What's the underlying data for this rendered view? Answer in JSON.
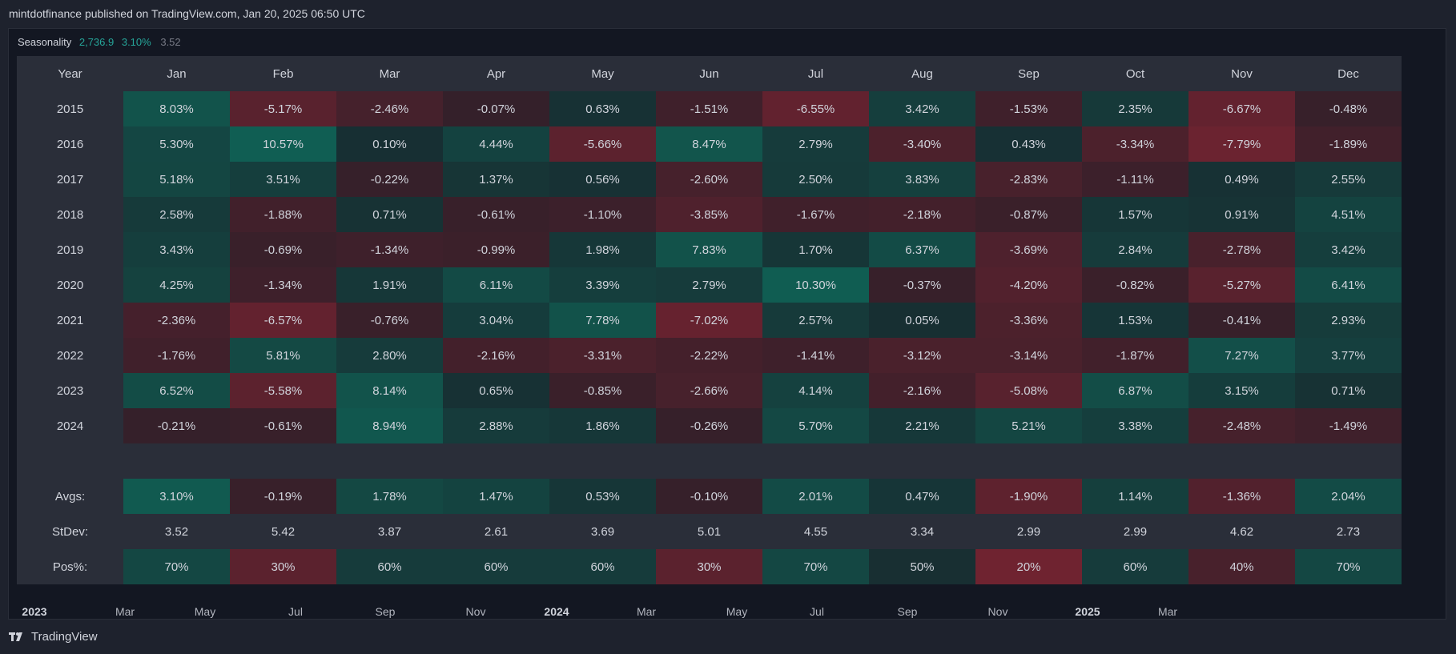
{
  "publication": "mintdotfinance published on TradingView.com, Jan 20, 2025 06:50 UTC",
  "legend": {
    "title": "Seasonality",
    "value1": "2,736.9",
    "value2": "3.10%",
    "value3": "3.52"
  },
  "table": {
    "header": [
      "Year",
      "Jan",
      "Feb",
      "Mar",
      "Apr",
      "May",
      "Jun",
      "Jul",
      "Aug",
      "Sep",
      "Oct",
      "Nov",
      "Dec"
    ],
    "rows": [
      {
        "year": "2015",
        "cells": [
          "8.03%",
          "-5.17%",
          "-2.46%",
          "-0.07%",
          "0.63%",
          "-1.51%",
          "-6.55%",
          "3.42%",
          "-1.53%",
          "2.35%",
          "-6.67%",
          "-0.48%"
        ]
      },
      {
        "year": "2016",
        "cells": [
          "5.30%",
          "10.57%",
          "0.10%",
          "4.44%",
          "-5.66%",
          "8.47%",
          "2.79%",
          "-3.40%",
          "0.43%",
          "-3.34%",
          "-7.79%",
          "-1.89%"
        ]
      },
      {
        "year": "2017",
        "cells": [
          "5.18%",
          "3.51%",
          "-0.22%",
          "1.37%",
          "0.56%",
          "-2.60%",
          "2.50%",
          "3.83%",
          "-2.83%",
          "-1.11%",
          "0.49%",
          "2.55%"
        ]
      },
      {
        "year": "2018",
        "cells": [
          "2.58%",
          "-1.88%",
          "0.71%",
          "-0.61%",
          "-1.10%",
          "-3.85%",
          "-1.67%",
          "-2.18%",
          "-0.87%",
          "1.57%",
          "0.91%",
          "4.51%"
        ]
      },
      {
        "year": "2019",
        "cells": [
          "3.43%",
          "-0.69%",
          "-1.34%",
          "-0.99%",
          "1.98%",
          "7.83%",
          "1.70%",
          "6.37%",
          "-3.69%",
          "2.84%",
          "-2.78%",
          "3.42%"
        ]
      },
      {
        "year": "2020",
        "cells": [
          "4.25%",
          "-1.34%",
          "1.91%",
          "6.11%",
          "3.39%",
          "2.79%",
          "10.30%",
          "-0.37%",
          "-4.20%",
          "-0.82%",
          "-5.27%",
          "6.41%"
        ]
      },
      {
        "year": "2021",
        "cells": [
          "-2.36%",
          "-6.57%",
          "-0.76%",
          "3.04%",
          "7.78%",
          "-7.02%",
          "2.57%",
          "0.05%",
          "-3.36%",
          "1.53%",
          "-0.41%",
          "2.93%"
        ]
      },
      {
        "year": "2022",
        "cells": [
          "-1.76%",
          "5.81%",
          "2.80%",
          "-2.16%",
          "-3.31%",
          "-2.22%",
          "-1.41%",
          "-3.12%",
          "-3.14%",
          "-1.87%",
          "7.27%",
          "3.77%"
        ]
      },
      {
        "year": "2023",
        "cells": [
          "6.52%",
          "-5.58%",
          "8.14%",
          "0.65%",
          "-0.85%",
          "-2.66%",
          "4.14%",
          "-2.16%",
          "-5.08%",
          "6.87%",
          "3.15%",
          "0.71%"
        ]
      },
      {
        "year": "2024",
        "cells": [
          "-0.21%",
          "-0.61%",
          "8.94%",
          "2.88%",
          "1.86%",
          "-0.26%",
          "5.70%",
          "2.21%",
          "5.21%",
          "3.38%",
          "-2.48%",
          "-1.49%"
        ]
      }
    ],
    "avgs": {
      "label": "Avgs:",
      "cells": [
        "3.10%",
        "-0.19%",
        "1.78%",
        "1.47%",
        "0.53%",
        "-0.10%",
        "2.01%",
        "0.47%",
        "-1.90%",
        "1.14%",
        "-1.36%",
        "2.04%"
      ]
    },
    "stdev": {
      "label": "StDev:",
      "cells": [
        "3.52",
        "5.42",
        "3.87",
        "2.61",
        "3.69",
        "5.01",
        "4.55",
        "3.34",
        "2.99",
        "2.99",
        "4.62",
        "2.73"
      ]
    },
    "pos": {
      "label": "Pos%:",
      "cells": [
        "70%",
        "30%",
        "60%",
        "60%",
        "60%",
        "30%",
        "70%",
        "50%",
        "20%",
        "60%",
        "40%",
        "70%"
      ]
    }
  },
  "time_axis": [
    {
      "label": "2023",
      "major": true
    },
    {
      "label": "Mar",
      "major": false
    },
    {
      "label": "May",
      "major": false
    },
    {
      "label": "Jul",
      "major": false
    },
    {
      "label": "Sep",
      "major": false
    },
    {
      "label": "Nov",
      "major": false
    },
    {
      "label": "2024",
      "major": true
    },
    {
      "label": "Mar",
      "major": false
    },
    {
      "label": "May",
      "major": false
    },
    {
      "label": "Jul",
      "major": false
    },
    {
      "label": "Sep",
      "major": false
    },
    {
      "label": "Nov",
      "major": false
    },
    {
      "label": "2025",
      "major": true
    },
    {
      "label": "Mar",
      "major": false
    }
  ],
  "brand": "TradingView",
  "colors": {
    "positive": "#0e5a4e",
    "negative": "#7a2230",
    "neutral": "#2a2e39"
  }
}
